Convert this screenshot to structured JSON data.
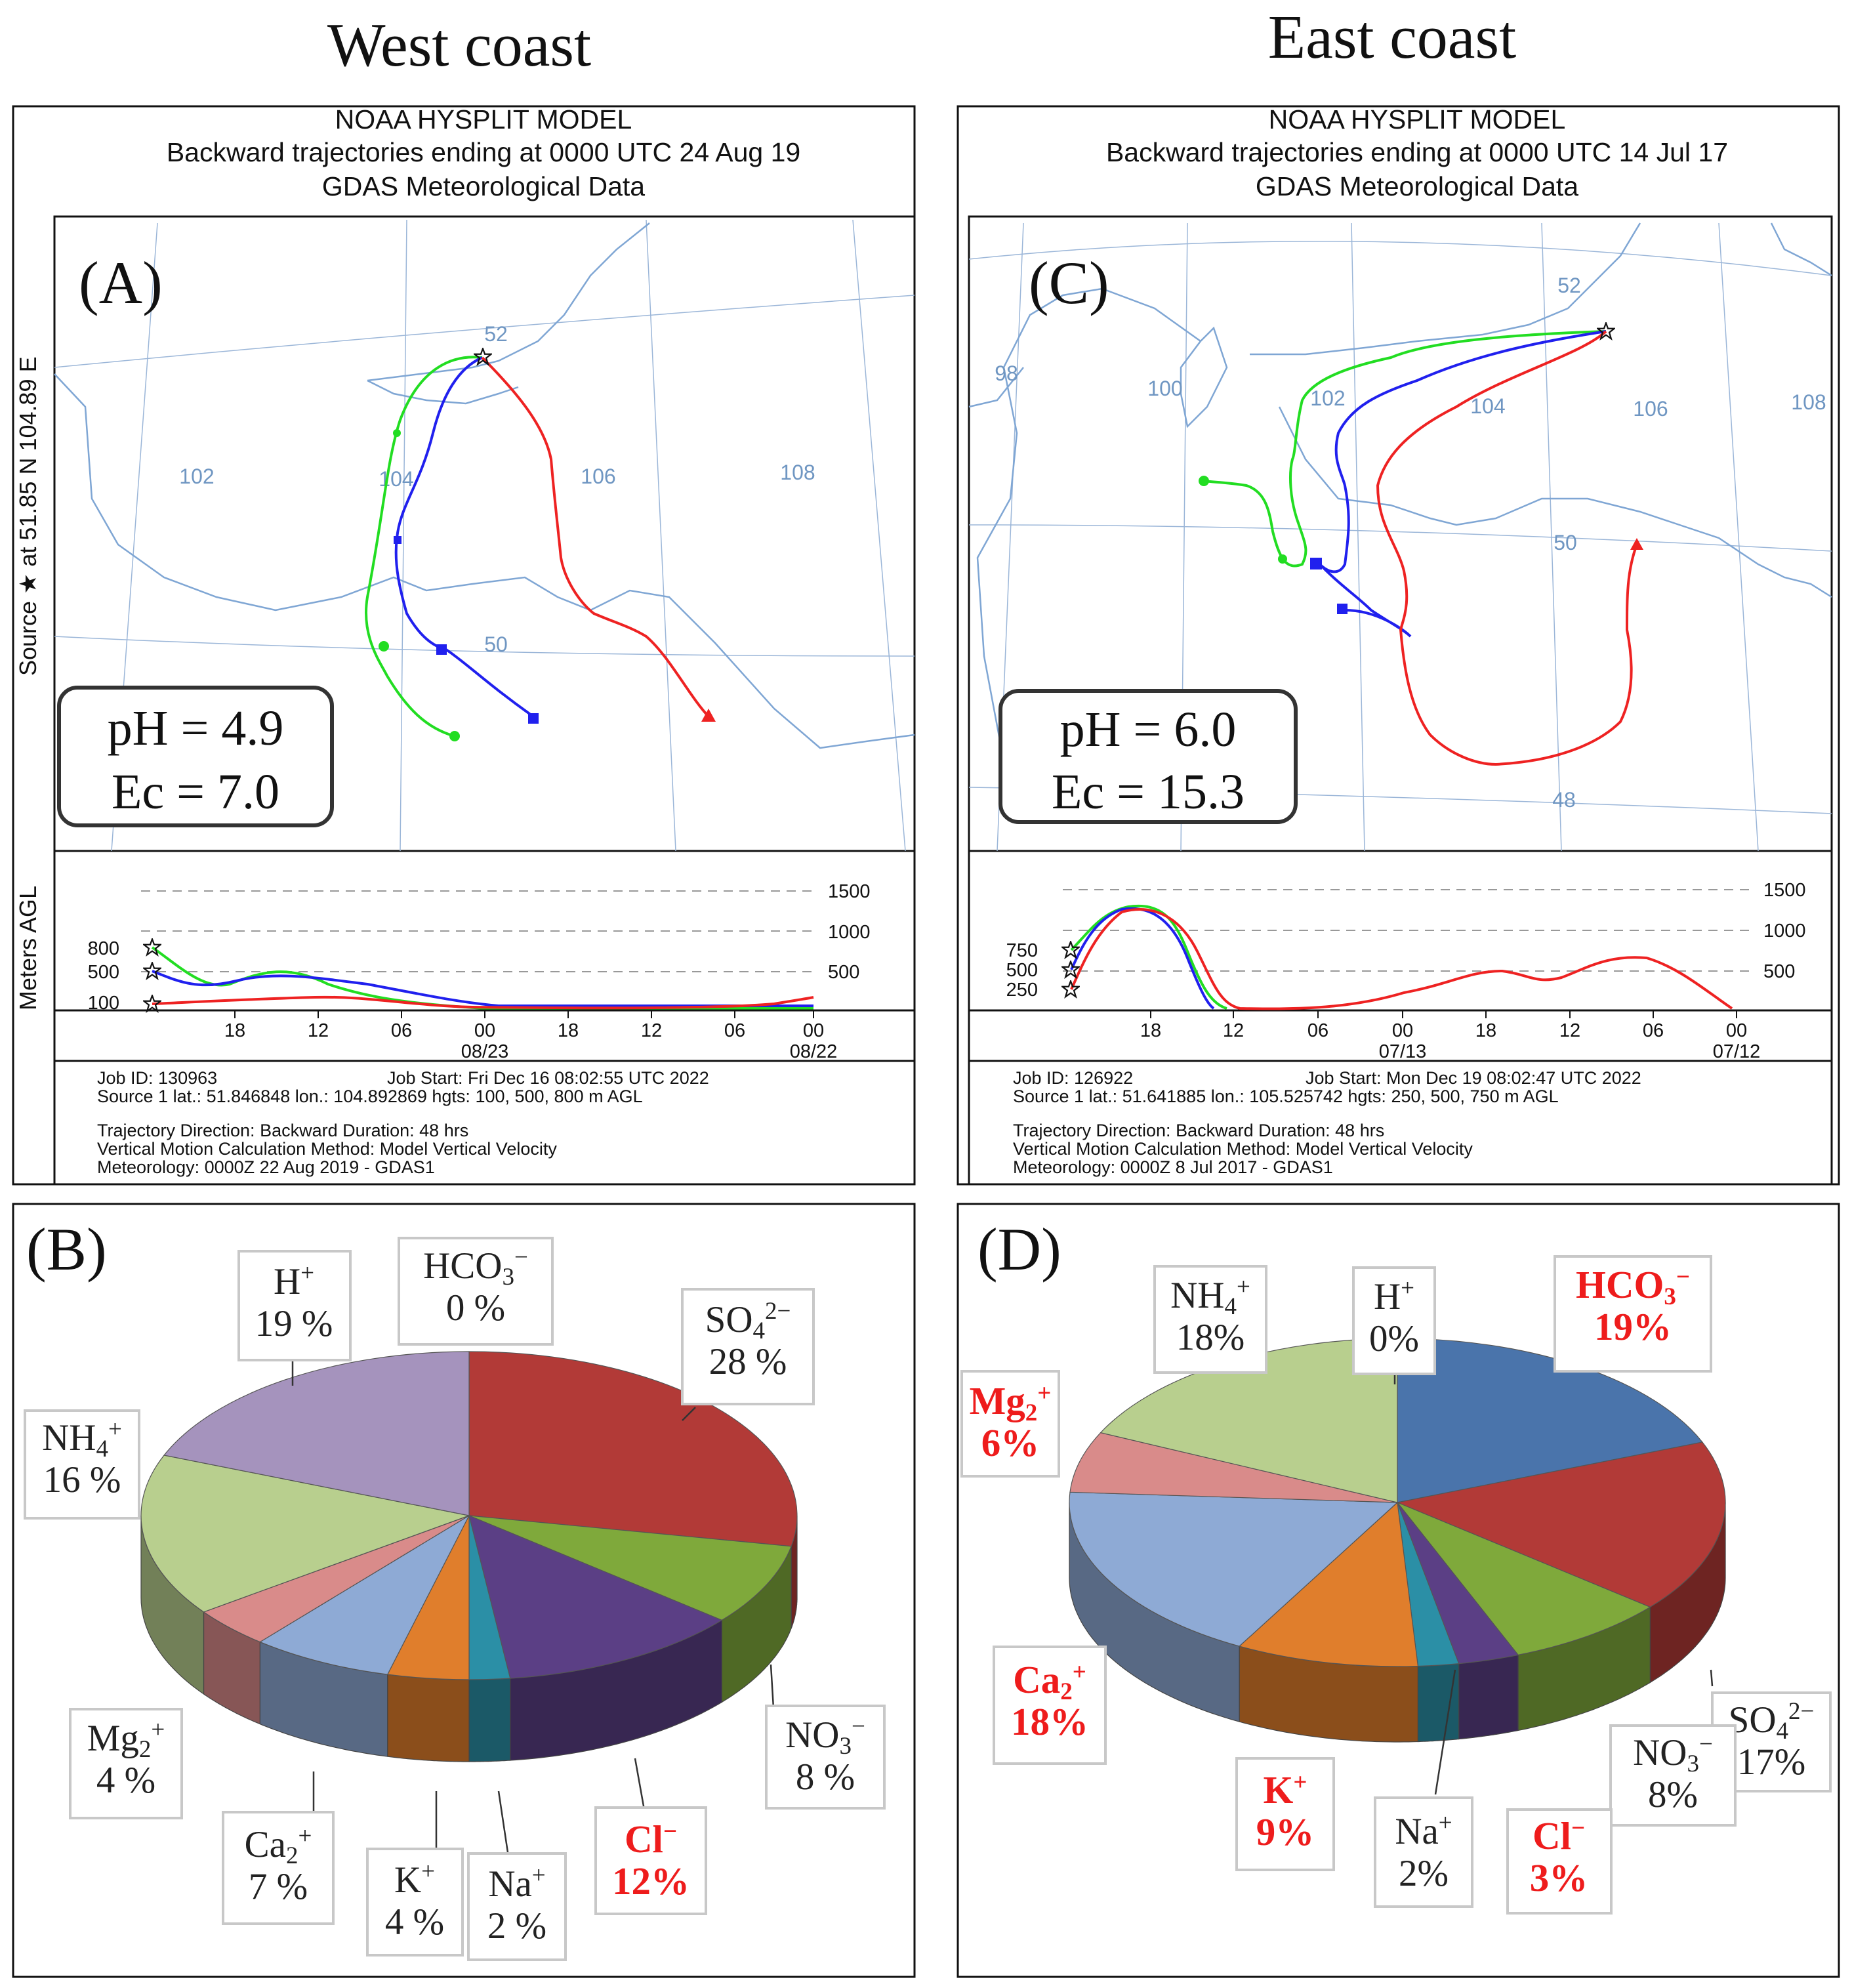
{
  "titles": {
    "west": "West coast",
    "east": "East coast"
  },
  "hysplit": [
    {
      "panel": "(A)",
      "model": "NOAA HYSPLIT MODEL",
      "subtitle": "Backward trajectories ending at 0000 UTC 24 Aug 19",
      "data": "GDAS Meteorological Data",
      "source": "Source ★ at 51.85 N 104.89 E",
      "ylabel": "Meters AGL",
      "grid_labels": [
        "52",
        "102",
        "104",
        "106",
        "108",
        "50"
      ],
      "ph": "pH = 4.9",
      "ec": "Ec = 7.0",
      "height_right": [
        "1500",
        "1000",
        "500"
      ],
      "height_left": [
        "800",
        "500",
        "100"
      ],
      "time_ticks": [
        "18",
        "12",
        "06",
        "00",
        "18",
        "12",
        "06",
        "00"
      ],
      "dates": [
        "08/23",
        "08/22"
      ],
      "info": [
        "Job ID: 130963",
        "Job Start: Fri Dec 16 08:02:55 UTC 2022",
        "Source 1 lat.: 51.846848  lon.: 104.892869  hgts: 100, 500, 800 m AGL",
        "Trajectory Direction: Backward      Duration: 48 hrs",
        "Vertical Motion Calculation Method:          Model Vertical Velocity",
        "Meteorology: 0000Z 22 Aug 2019 - GDAS1"
      ]
    },
    {
      "panel": "(C)",
      "model": "NOAA HYSPLIT MODEL",
      "subtitle": "Backward trajectories ending at 0000 UTC 14 Jul 17",
      "data": "GDAS Meteorological Data",
      "grid_labels": [
        "52",
        "98",
        "100",
        "102",
        "104",
        "106",
        "108",
        "50",
        "48"
      ],
      "ph": "pH = 6.0",
      "ec": "Ec = 15.3",
      "height_right": [
        "1500",
        "1000",
        "500"
      ],
      "height_left": [
        "750",
        "500",
        "250"
      ],
      "time_ticks": [
        "18",
        "12",
        "06",
        "00",
        "18",
        "12",
        "06",
        "00"
      ],
      "dates": [
        "07/13",
        "07/12"
      ],
      "info": [
        "Job ID: 126922",
        "Job Start: Mon Dec 19 08:02:47 UTC 2022",
        "Source 1 lat.: 51.641885  lon.: 105.525742  hgts: 250, 500, 750 m AGL",
        "Trajectory Direction: Backward      Duration: 48 hrs",
        "Vertical Motion Calculation Method:          Model Vertical Velocity",
        "Meteorology: 0000Z  8 Jul 2017 - GDAS1"
      ]
    }
  ],
  "chart_data": [
    {
      "type": "pie",
      "title": "(B)",
      "region": "West coast",
      "series": [
        {
          "name": "HCO3−",
          "value": 0,
          "label": "HCO3−",
          "pct": "0 %",
          "color": "#f2f2f2",
          "highlight": false
        },
        {
          "name": "SO4 2−",
          "value": 28,
          "label": "SO4 2−",
          "pct": "28 %",
          "color": "#b23a37",
          "highlight": false
        },
        {
          "name": "NO3−",
          "value": 8,
          "label": "NO3−",
          "pct": "8 %",
          "color": "#7fa93b",
          "highlight": false
        },
        {
          "name": "Cl−",
          "value": 12,
          "label": "Cl−",
          "pct": "12%",
          "color": "#5b3f85",
          "highlight": true
        },
        {
          "name": "Na+",
          "value": 2,
          "label": "Na+",
          "pct": "2 %",
          "color": "#2b8fa6",
          "highlight": false
        },
        {
          "name": "K+",
          "value": 4,
          "label": "K+",
          "pct": "4 %",
          "color": "#e07e2c",
          "highlight": false
        },
        {
          "name": "Ca2+",
          "value": 7,
          "label": "Ca2+",
          "pct": "7 %",
          "color": "#8eaad5",
          "highlight": false
        },
        {
          "name": "Mg2+",
          "value": 4,
          "label": "Mg2+",
          "pct": "4 %",
          "color": "#d98b8a",
          "highlight": false
        },
        {
          "name": "NH4+",
          "value": 16,
          "label": "NH4+",
          "pct": "16 %",
          "color": "#b8cf8e",
          "highlight": false
        },
        {
          "name": "H+",
          "value": 19,
          "label": "H+",
          "pct": "19 %",
          "color": "#a593bd",
          "highlight": false
        }
      ]
    },
    {
      "type": "pie",
      "title": "(D)",
      "region": "East coast",
      "series": [
        {
          "name": "H+",
          "value": 0,
          "label": "H+",
          "pct": "0%",
          "color": "#a593bd",
          "highlight": false
        },
        {
          "name": "HCO3−",
          "value": 19,
          "label": "HCO3−",
          "pct": "19%",
          "color": "#4a74ab",
          "highlight": true
        },
        {
          "name": "SO4 2−",
          "value": 17,
          "label": "SO4 2−",
          "pct": "17%",
          "color": "#b23a37",
          "highlight": false
        },
        {
          "name": "NO3−",
          "value": 8,
          "label": "NO3−",
          "pct": "8%",
          "color": "#7fa93b",
          "highlight": false
        },
        {
          "name": "Cl−",
          "value": 3,
          "label": "Cl−",
          "pct": "3%",
          "color": "#5b3f85",
          "highlight": true
        },
        {
          "name": "Na+",
          "value": 2,
          "label": "Na+",
          "pct": "2%",
          "color": "#2b8fa6",
          "highlight": false
        },
        {
          "name": "K+",
          "value": 9,
          "label": "K+",
          "pct": "9%",
          "color": "#e07e2c",
          "highlight": true
        },
        {
          "name": "Ca2+",
          "value": 18,
          "label": "Ca2+",
          "pct": "18%",
          "color": "#8eaad5",
          "highlight": true
        },
        {
          "name": "Mg2+",
          "value": 6,
          "label": "Mg2+",
          "pct": "6%",
          "color": "#d98b8a",
          "highlight": true
        },
        {
          "name": "NH4+",
          "value": 18,
          "label": "NH4+",
          "pct": "18%",
          "color": "#b8cf8e",
          "highlight": false
        }
      ]
    }
  ]
}
